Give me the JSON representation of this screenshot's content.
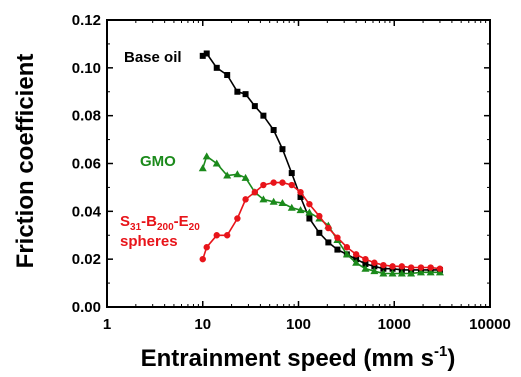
{
  "chart_data": {
    "type": "line",
    "xscale": "log",
    "xlim": [
      1,
      10000
    ],
    "ylim": [
      0,
      0.12
    ],
    "xticks": [
      1,
      10,
      100,
      1000,
      10000
    ],
    "xtick_labels": [
      "1",
      "10",
      "100",
      "1000",
      "10000"
    ],
    "yticks": [
      0,
      0.02,
      0.04,
      0.06,
      0.08,
      0.1,
      0.12
    ],
    "ytick_labels": [
      "0.00",
      "0.02",
      "0.04",
      "0.06",
      "0.08",
      "0.10",
      "0.12"
    ],
    "xlabel": "Entrainment speed (mm s",
    "xlabel_sup": "-1",
    "xlabel_end": ")",
    "ylabel": "Friction coefficient",
    "grid": false,
    "series": [
      {
        "name": "Base oil",
        "color": "#000000",
        "marker": "square",
        "x": [
          10,
          11,
          14,
          18,
          23,
          28,
          35,
          43,
          55,
          68,
          85,
          105,
          130,
          165,
          205,
          255,
          320,
          400,
          500,
          620,
          770,
          960,
          1200,
          1500,
          1900,
          2400,
          3000
        ],
        "y": [
          0.105,
          0.106,
          0.1,
          0.097,
          0.09,
          0.089,
          0.084,
          0.08,
          0.074,
          0.066,
          0.056,
          0.046,
          0.037,
          0.031,
          0.027,
          0.024,
          0.022,
          0.02,
          0.018,
          0.017,
          0.016,
          0.016,
          0.0155,
          0.0155,
          0.0155,
          0.0155,
          0.0155
        ]
      },
      {
        "name": "GMO",
        "color": "#1b8a1b",
        "marker": "triangle",
        "x": [
          10,
          11,
          14,
          18,
          23,
          28,
          35,
          43,
          55,
          68,
          85,
          105,
          130,
          165,
          205,
          255,
          320,
          400,
          500,
          620,
          770,
          960,
          1200,
          1500,
          1900,
          2400,
          3000
        ],
        "y": [
          0.058,
          0.063,
          0.06,
          0.055,
          0.0555,
          0.054,
          0.048,
          0.045,
          0.044,
          0.0435,
          0.0415,
          0.0405,
          0.0395,
          0.037,
          0.034,
          0.028,
          0.022,
          0.0185,
          0.016,
          0.015,
          0.014,
          0.014,
          0.014,
          0.014,
          0.0145,
          0.0145,
          0.0145
        ]
      },
      {
        "name_main": "S",
        "name_sub1": "31",
        "name_mid1": "-B",
        "name_sub2": "200",
        "name_mid2": "-E",
        "name_sub3": "20",
        "name_line2": "spheres",
        "color": "#e8141a",
        "marker": "circle",
        "x": [
          10,
          11,
          14,
          18,
          23,
          28,
          35,
          43,
          55,
          68,
          85,
          105,
          130,
          165,
          205,
          255,
          320,
          400,
          500,
          620,
          770,
          960,
          1200,
          1500,
          1900,
          2400,
          3000
        ],
        "y": [
          0.02,
          0.025,
          0.03,
          0.03,
          0.037,
          0.045,
          0.048,
          0.051,
          0.052,
          0.052,
          0.051,
          0.048,
          0.043,
          0.038,
          0.033,
          0.029,
          0.025,
          0.022,
          0.02,
          0.0185,
          0.0175,
          0.017,
          0.017,
          0.0165,
          0.0165,
          0.0165,
          0.016
        ]
      }
    ]
  }
}
